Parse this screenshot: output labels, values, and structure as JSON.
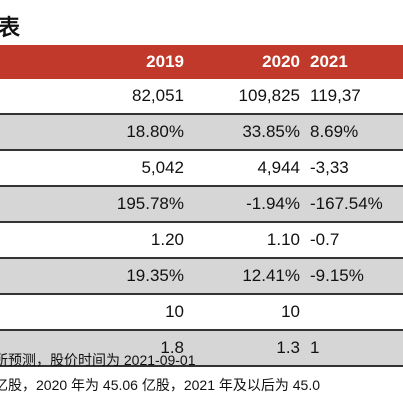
{
  "title": "表",
  "header": [
    "2019",
    "2020",
    "2021"
  ],
  "rows": [
    {
      "cells": [
        "82,051",
        "109,825",
        "119,37"
      ],
      "shade": false
    },
    {
      "cells": [
        "18.80%",
        "33.85%",
        "8.69%"
      ],
      "shade": true
    },
    {
      "cells": [
        "5,042",
        "4,944",
        "-3,33"
      ],
      "shade": false
    },
    {
      "cells": [
        "195.78%",
        "-1.94%",
        "-167.54%"
      ],
      "shade": true
    },
    {
      "cells": [
        "1.20",
        "1.10",
        "-0.7"
      ],
      "shade": false
    },
    {
      "cells": [
        "19.35%",
        "12.41%",
        "-9.15%"
      ],
      "shade": true
    },
    {
      "cells": [
        "10",
        "10",
        ""
      ],
      "shade": false
    },
    {
      "cells": [
        "1.8",
        "1.3",
        "1"
      ],
      "shade": true
    }
  ],
  "notes": [
    "所预测，股价时间为 2021-09-01",
    "亿股，2020 年为 45.06 亿股，2021 年及以后为 45.0"
  ]
}
